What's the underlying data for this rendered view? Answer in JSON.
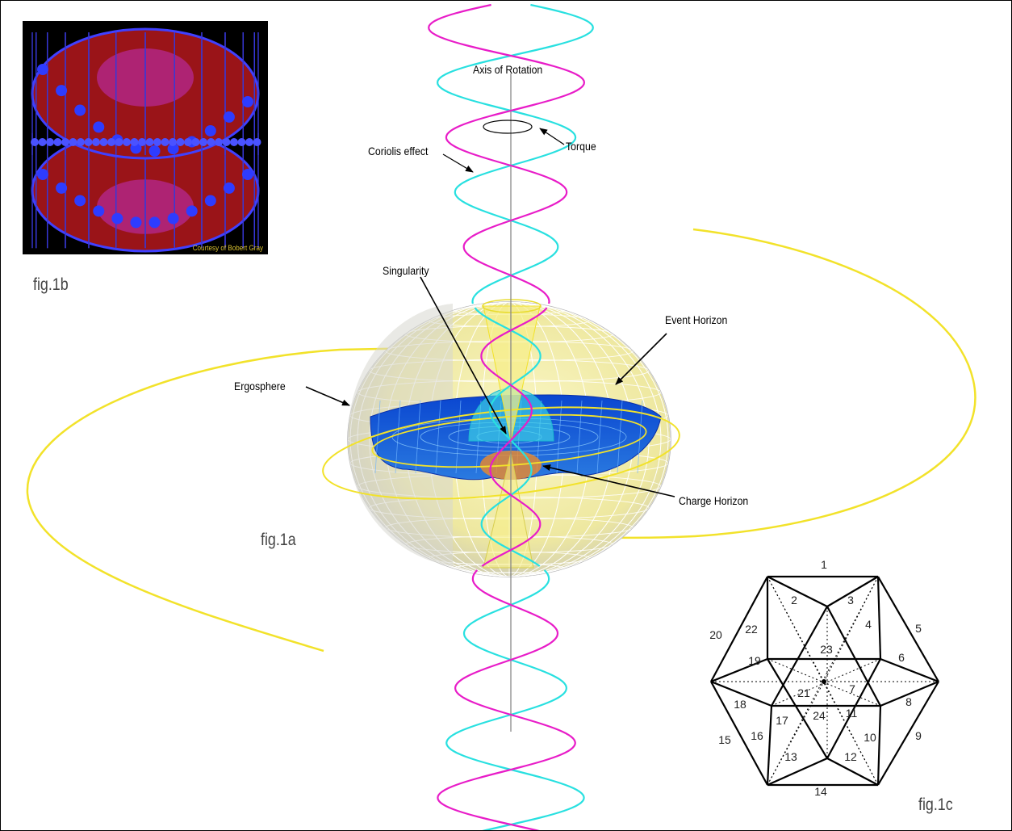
{
  "labels": {
    "axis_of_rotation": "Axis of Rotation",
    "torque": "Torque",
    "coriolis_effect": "Coriolis effect",
    "singularity": "Singularity",
    "event_horizon": "Event Horizon",
    "ergosphere": "Ergosphere",
    "charge_horizon": "Charge Horizon"
  },
  "figures": {
    "fig1a": "fig.1a",
    "fig1b": "fig.1b",
    "fig1c": "fig.1c"
  },
  "fig1b_credit": "Courtesy of Bobert Gray",
  "fig1c_numbers": [
    "1",
    "2",
    "3",
    "4",
    "5",
    "6",
    "7",
    "8",
    "9",
    "10",
    "11",
    "12",
    "13",
    "14",
    "15",
    "16",
    "17",
    "18",
    "19",
    "20",
    "21",
    "22",
    "23",
    "24"
  ],
  "colors": {
    "helix_magenta": "#e81cc8",
    "helix_cyan": "#28e0e0",
    "orbit_yellow": "#f2e22a",
    "sphere_fill": "#f4f0b4",
    "disk_blue": "#1a56d6",
    "torus_red": "#a01418",
    "torus_blue": "#3a3cff"
  }
}
